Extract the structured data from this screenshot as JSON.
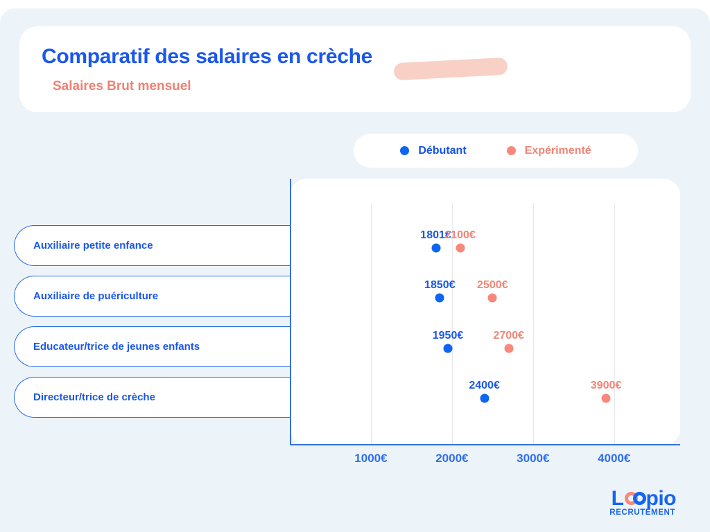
{
  "page": {
    "title": "Comparatif des salaires en crèche",
    "subtitle": "Salaires Brut mensuel"
  },
  "legend": {
    "items": [
      {
        "label": "Débutant",
        "color": "#0e64f4",
        "text_color": "#1450ee"
      },
      {
        "label": "Expérimenté",
        "color": "#f8887b",
        "text_color": "#f28577"
      }
    ]
  },
  "chart_data": {
    "type": "scatter",
    "orientation": "horizontal-categories",
    "title": "Comparatif des salaires en crèche",
    "subtitle": "Salaires Brut mensuel",
    "categories": [
      "Auxiliaire petite enfance",
      "Auxiliaire de puériculture",
      "Educateur/trice de jeunes enfants",
      "Directeur/trice de crèche"
    ],
    "series": [
      {
        "name": "Débutant",
        "color": "#0e64f4",
        "label_color": "#1a57ec",
        "values": [
          1801,
          1850,
          1950,
          2400
        ],
        "labels": [
          "1801€",
          "1850€",
          "1950€",
          "2400€"
        ]
      },
      {
        "name": "Expérimenté",
        "color": "#f8887b",
        "label_color": "#f28577",
        "values": [
          2100,
          2500,
          2700,
          3900
        ],
        "labels": [
          "2100€",
          "2500€",
          "2700€",
          "3900€"
        ]
      }
    ],
    "x_axis": {
      "unit": "€",
      "min": 0,
      "max": 4815,
      "ticks": [
        1000,
        2000,
        3000,
        4000
      ],
      "tick_labels": [
        "1000€",
        "2000€",
        "3000€",
        "4000€"
      ]
    },
    "grid": "vertical",
    "legend_position": "top-right"
  },
  "logo": {
    "brand": "Loopio",
    "brand_start": "L",
    "brand_end": "pio",
    "tagline": "RECRUTEMENT"
  },
  "colors": {
    "background": "#edf4f9",
    "card": "#ffffff",
    "accent_blue": "#1a57ec",
    "accent_coral": "#f8887b",
    "axis_blue": "#3570e0",
    "gridline": "#e7e7eb",
    "highlight_swoosh": "#f9d0c6"
  }
}
